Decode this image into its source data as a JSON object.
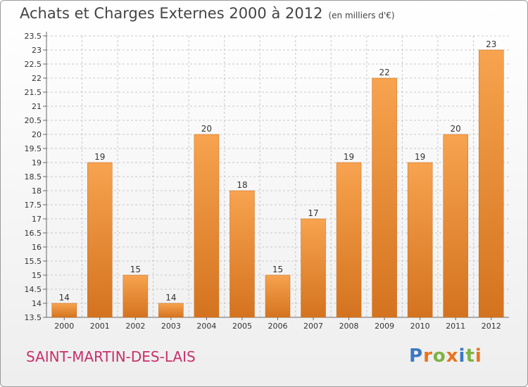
{
  "chart_data": {
    "type": "bar",
    "title": "Achats et Charges Externes 2000 à 2012",
    "subtitle": "(en milliers d'€)",
    "xlabel": "",
    "ylabel": "",
    "categories": [
      "2000",
      "2001",
      "2002",
      "2003",
      "2004",
      "2005",
      "2006",
      "2007",
      "2008",
      "2009",
      "2010",
      "2011",
      "2012"
    ],
    "values": [
      14,
      19,
      15,
      14,
      20,
      18,
      15,
      17,
      19,
      22,
      19,
      20,
      23
    ],
    "ylim": [
      13.5,
      23.5
    ],
    "yticks": [
      13.5,
      14,
      14.5,
      15,
      15.5,
      16,
      16.5,
      17,
      17.5,
      18,
      18.5,
      19,
      19.5,
      20,
      20.5,
      21,
      21.5,
      22,
      22.5,
      23,
      23.5
    ],
    "grid": true,
    "bar_color_top": "#f7a34f",
    "bar_color_bottom": "#d4731f"
  },
  "commune": "SAINT-MARTIN-DES-LAIS",
  "logo": {
    "letters": [
      {
        "char": "P",
        "color": "#3a78c3"
      },
      {
        "char": "r",
        "color": "#e8741e"
      },
      {
        "char": "o",
        "color": "#7cb342"
      },
      {
        "char": "x",
        "color": "#e8741e"
      },
      {
        "char": "i",
        "color": "#3a78c3"
      },
      {
        "char": "t",
        "color": "#7cb342"
      },
      {
        "char": "i",
        "color": "#e8741e"
      }
    ]
  }
}
